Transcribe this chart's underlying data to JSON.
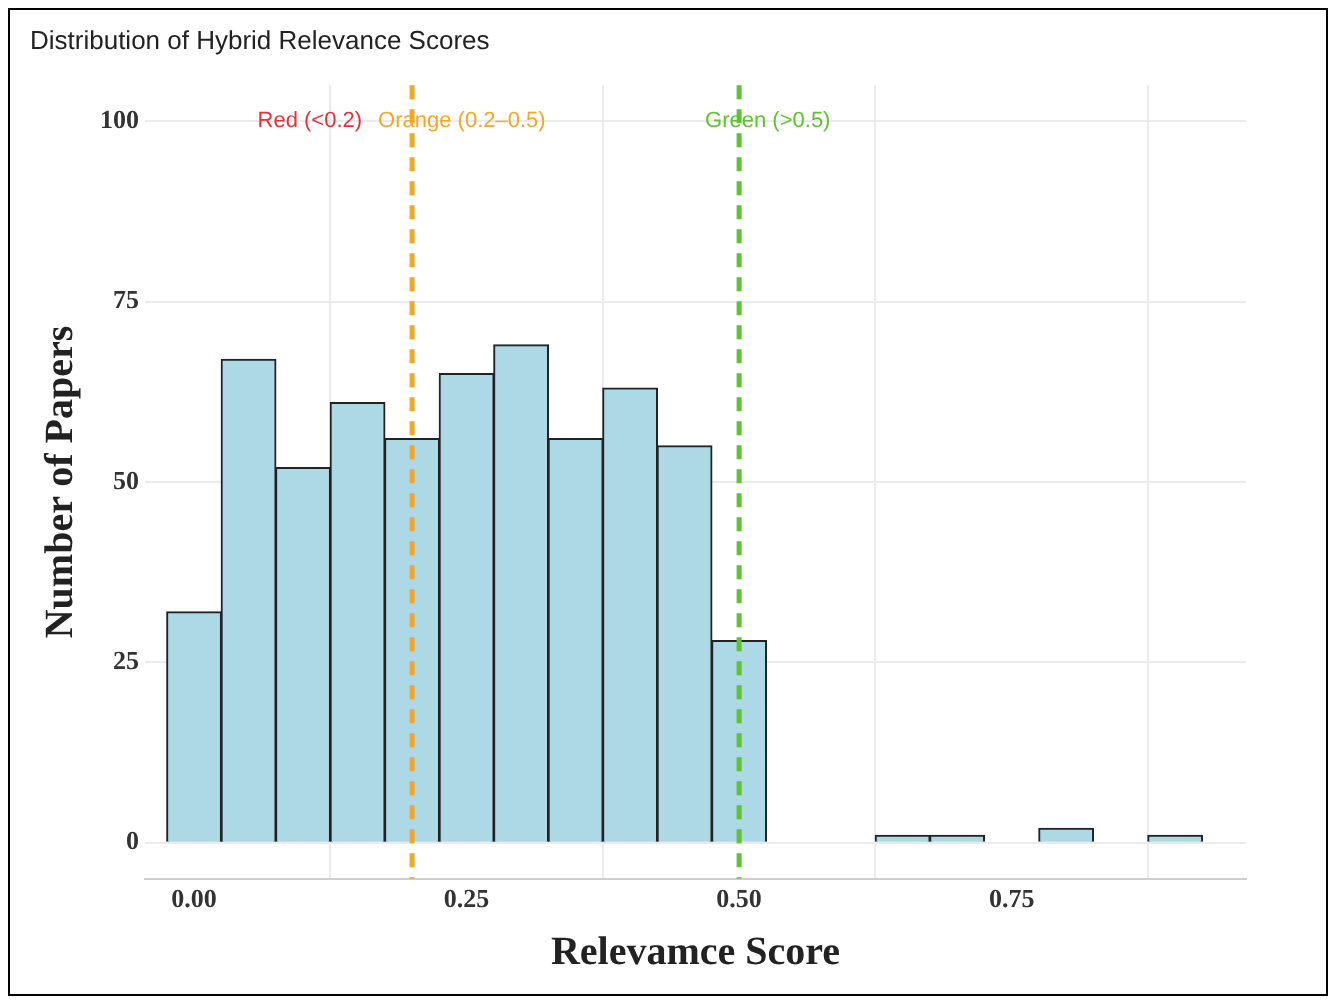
{
  "chart_data": {
    "type": "histogram",
    "title": "Distribution of Hybrid Relevance Scores",
    "xlabel": "Relevamce Score",
    "ylabel": "Number of Papers",
    "bins": [
      -0.025,
      0.025,
      0.075,
      0.125,
      0.175,
      0.225,
      0.275,
      0.325,
      0.375,
      0.425,
      0.475,
      0.525,
      0.575,
      0.625,
      0.675,
      0.725,
      0.775,
      0.825,
      0.875,
      0.925
    ],
    "values": [
      32,
      67,
      52,
      61,
      56,
      65,
      69,
      56,
      63,
      55,
      28,
      0,
      0,
      1,
      1,
      0,
      2,
      0,
      1
    ],
    "color": "#add8e6",
    "xlim": [
      -0.045,
      0.965
    ],
    "xticks": [
      {
        "value": 0,
        "label": "0.00"
      },
      {
        "value": 0.25,
        "label": "0.25"
      },
      {
        "value": 0.5,
        "label": "0.50"
      },
      {
        "value": 0.75,
        "label": "0.75"
      }
    ],
    "ylim": [
      -5,
      105
    ],
    "yticks": [
      0,
      25,
      50,
      75,
      100
    ],
    "grid": true,
    "ref_lines": [
      {
        "axis": "x",
        "value": 0.2,
        "label": "Orange (0.2–0.5)",
        "color": "#f5a623",
        "line_style": "dashed"
      },
      {
        "axis": "x",
        "value": 0.5,
        "label": "Green (>0.5)",
        "color": "#5ec232",
        "line_style": "dashed"
      }
    ],
    "annotations": [
      "Red (<0.2)"
    ]
  }
}
